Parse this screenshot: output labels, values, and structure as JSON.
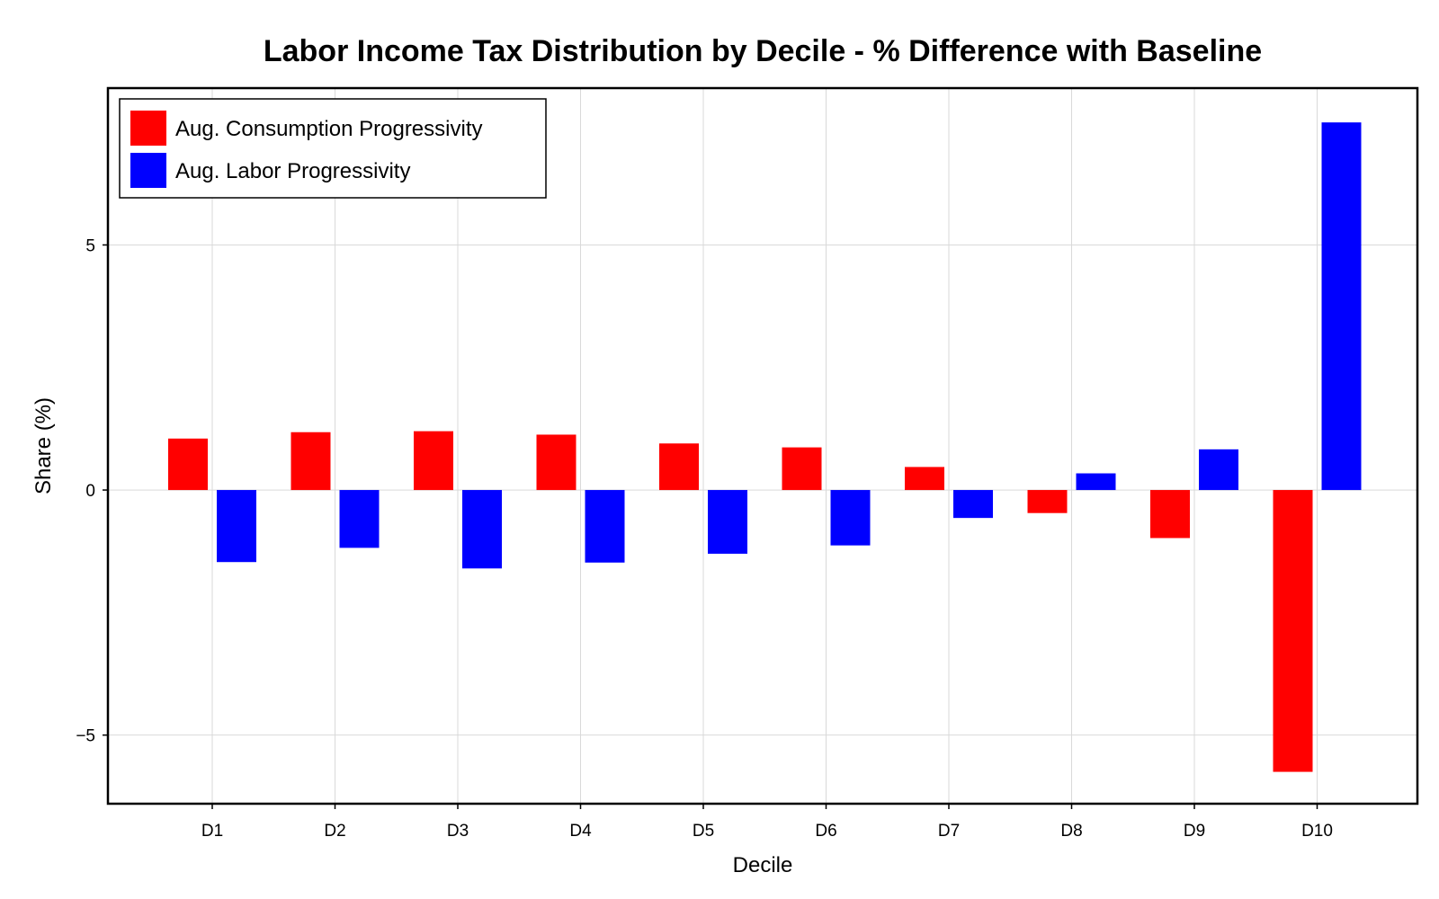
{
  "chart_data": {
    "type": "bar",
    "title": "Labor Income Tax Distribution by Decile - % Difference with Baseline",
    "xlabel": "Decile",
    "ylabel": "Share (%)",
    "categories": [
      "D1",
      "D2",
      "D3",
      "D4",
      "D5",
      "D6",
      "D7",
      "D8",
      "D9",
      "D10"
    ],
    "series": [
      {
        "name": "Aug. Consumption Progressivity",
        "color": "#ff0000",
        "values": [
          1.05,
          1.18,
          1.2,
          1.13,
          0.95,
          0.87,
          0.47,
          -0.47,
          -0.98,
          -5.75
        ]
      },
      {
        "name": "Aug. Labor Progressivity",
        "color": "#0000ff",
        "values": [
          -1.47,
          -1.18,
          -1.6,
          -1.48,
          -1.3,
          -1.13,
          -0.57,
          0.34,
          0.83,
          7.5
        ]
      }
    ],
    "ylim": [
      -6.4,
      8.2
    ],
    "yticks": [
      -5,
      0,
      5
    ],
    "ytick_labels": [
      "−5",
      "0",
      "5"
    ],
    "grid": true,
    "legend_position": "top-left"
  }
}
